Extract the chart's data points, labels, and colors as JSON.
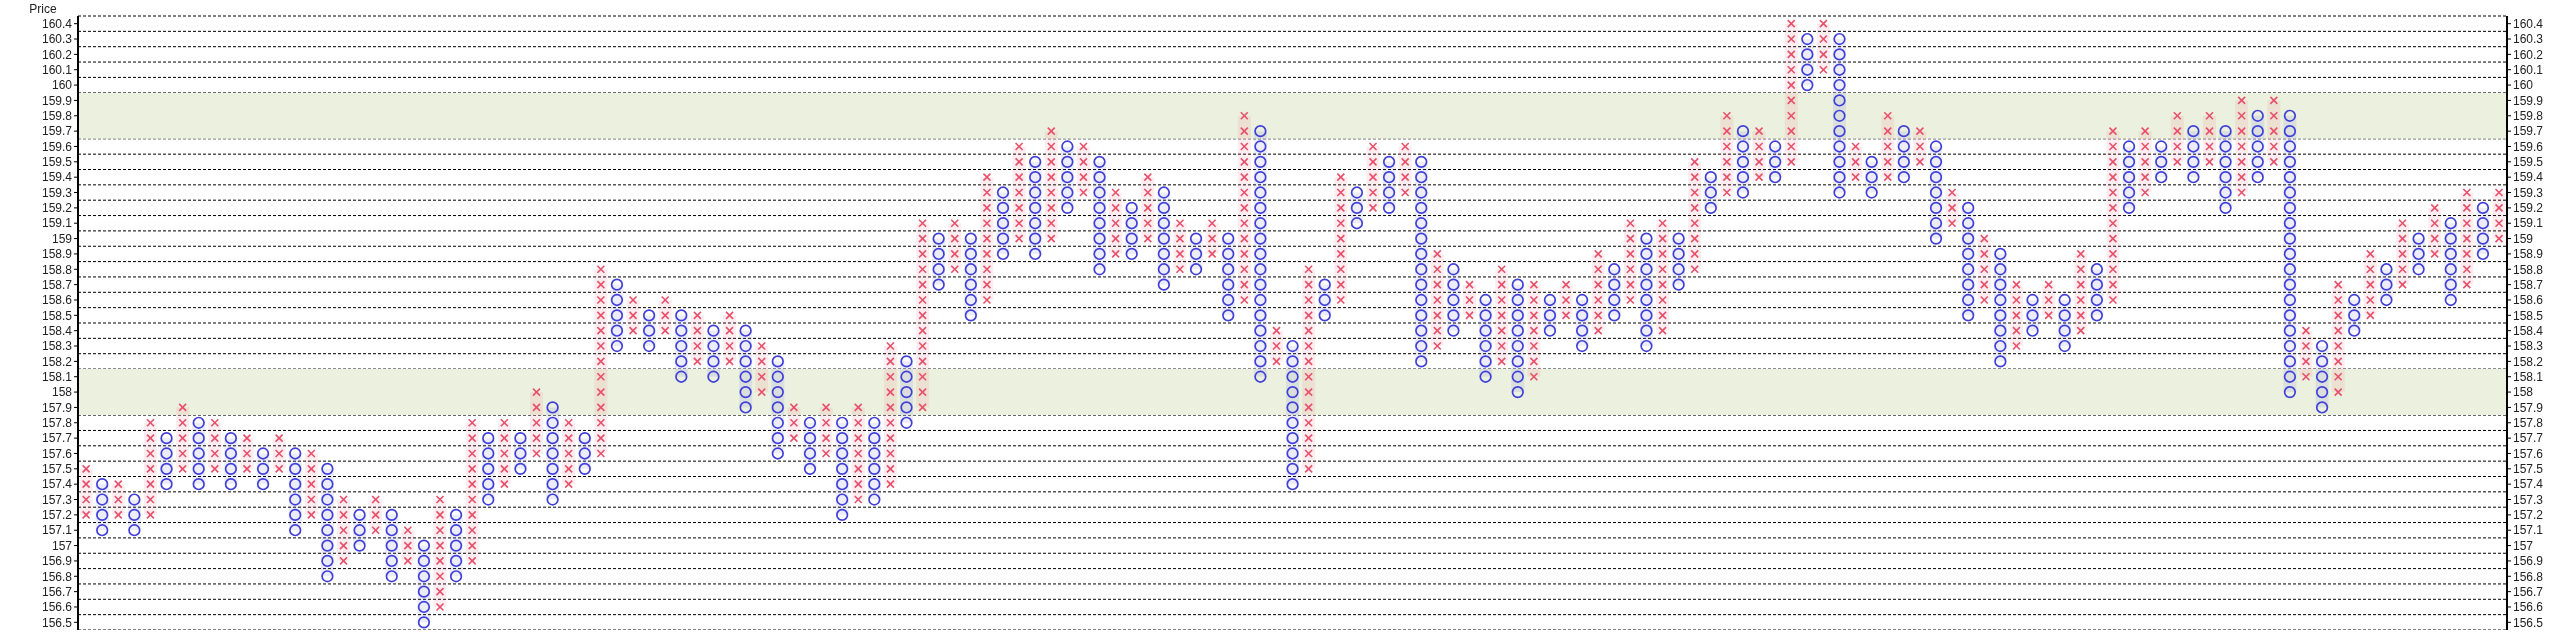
{
  "chart_data": {
    "type": "bar",
    "ylabel": "Price",
    "categories": [
      null,
      null,
      null,
      null,
      null,
      null,
      null,
      null,
      null,
      null,
      null,
      null,
      null,
      null,
      null,
      null,
      null,
      null,
      null,
      null,
      null,
      null,
      null,
      null,
      null,
      null,
      null,
      null,
      null,
      null,
      null,
      null,
      null,
      null,
      null,
      null,
      null,
      null,
      null,
      null,
      null,
      null,
      null,
      null,
      null,
      null,
      null,
      null,
      null,
      null,
      null,
      null,
      null,
      null,
      null,
      null,
      null,
      null,
      null,
      null,
      null,
      null,
      null,
      null,
      null,
      null,
      null,
      null,
      null,
      null,
      null,
      null,
      null,
      null,
      null,
      null,
      null,
      null,
      null,
      null,
      null,
      null,
      null,
      null,
      null,
      null,
      null,
      null,
      null,
      null,
      null,
      null,
      null,
      null,
      null,
      null,
      null,
      null,
      null,
      null,
      null,
      null,
      null,
      null,
      null,
      null,
      null,
      null,
      null,
      null,
      null,
      null,
      null,
      null,
      null,
      null,
      null,
      null,
      null,
      null,
      null,
      null,
      null,
      null,
      null,
      null,
      null,
      null,
      null,
      null,
      null,
      null,
      null,
      null,
      null,
      null,
      null,
      null,
      null,
      null,
      null,
      null,
      null,
      null,
      null,
      null,
      null,
      null,
      null,
      null,
      null
    ],
    "series": [
      {
        "color": "#e8506a",
        "marker": "cross",
        "base": [
          157.2,
          null,
          157.2,
          null,
          157.2,
          null,
          157.5,
          null,
          157.5,
          null,
          157.5,
          null,
          157.5,
          null,
          157.2,
          null,
          156.9,
          null,
          157.1,
          null,
          156.9,
          null,
          156.6,
          null,
          156.9,
          null,
          157.4,
          null,
          157.6,
          null,
          157.4,
          null,
          157.6,
          null,
          158.4,
          null,
          158.4,
          null,
          158.2,
          null,
          158.2,
          null,
          158.0,
          null,
          157.7,
          null,
          157.6,
          null,
          157.3,
          null,
          157.4,
          null,
          157.9,
          null,
          158.8,
          null,
          158.6,
          null,
          159.0,
          null,
          159.0,
          null,
          159.3,
          null,
          158.9,
          null,
          159.0,
          null,
          158.8,
          null,
          158.9,
          null,
          158.6,
          null,
          158.2,
          null,
          157.5,
          null,
          158.6,
          null,
          159.2,
          null,
          159.3,
          null,
          158.3,
          null,
          158.5,
          null,
          158.2,
          null,
          158.1,
          null,
          158.5,
          null,
          158.4,
          null,
          158.6,
          null,
          158.4,
          null,
          158.8,
          null,
          159.3,
          null,
          159.4,
          null,
          159.5,
          null,
          160.1,
          null,
          159.4,
          null,
          159.4,
          null,
          159.5,
          null,
          159.1,
          null,
          158.6,
          null,
          158.3,
          null,
          158.5,
          null,
          158.4,
          null,
          158.6,
          null,
          159.3,
          null,
          159.5,
          null,
          159.5,
          null,
          159.3,
          null,
          159.5,
          null,
          158.1,
          null,
          158.0,
          null,
          158.5,
          null,
          158.7,
          null,
          158.9,
          null,
          158.7,
          null,
          159.0
        ],
        "values": [
          0.3,
          null,
          0.2,
          null,
          0.6,
          null,
          0.4,
          null,
          0.3,
          null,
          0.2,
          null,
          0.2,
          null,
          0.4,
          null,
          0.4,
          null,
          0.2,
          null,
          0.2,
          null,
          0.7,
          null,
          0.9,
          null,
          0.4,
          null,
          0.4,
          null,
          0.4,
          null,
          1.2,
          null,
          0.2,
          null,
          0.2,
          null,
          0.3,
          null,
          0.3,
          null,
          0.3,
          null,
          0.2,
          null,
          0.3,
          null,
          0.6,
          null,
          0.9,
          null,
          1.2,
          null,
          0.3,
          null,
          0.8,
          null,
          0.6,
          null,
          0.7,
          null,
          0.3,
          null,
          0.4,
          null,
          0.4,
          null,
          0.3,
          null,
          0.2,
          null,
          1.2,
          null,
          0.2,
          null,
          1.3,
          null,
          0.8,
          null,
          0.4,
          null,
          0.3,
          null,
          0.6,
          null,
          0.2,
          null,
          0.6,
          null,
          0.6,
          null,
          0.2,
          null,
          0.5,
          null,
          0.5,
          null,
          0.7,
          null,
          0.7,
          null,
          0.5,
          null,
          0.3,
          null,
          0.9,
          null,
          0.3,
          null,
          0.2,
          null,
          0.4,
          null,
          0.2,
          null,
          0.2,
          null,
          0.4,
          null,
          0.4,
          null,
          0.2,
          null,
          0.5,
          null,
          1.1,
          null,
          0.4,
          null,
          0.3,
          null,
          0.3,
          null,
          0.6,
          null,
          0.4,
          null,
          0.3,
          null,
          0.7,
          null,
          0.4,
          null,
          0.4,
          null,
          0.3,
          null,
          0.6,
          null,
          0.3
        ]
      },
      {
        "color": "#4040d8",
        "marker": "circle",
        "base": [
          null,
          157.1,
          null,
          157.1,
          null,
          157.4,
          null,
          157.4,
          null,
          157.4,
          null,
          157.4,
          null,
          157.1,
          null,
          156.8,
          null,
          157.0,
          null,
          156.8,
          null,
          156.5,
          null,
          156.8,
          null,
          157.3,
          null,
          157.5,
          null,
          157.3,
          null,
          157.5,
          null,
          158.3,
          null,
          158.3,
          null,
          158.1,
          null,
          158.1,
          null,
          157.9,
          null,
          157.6,
          null,
          157.5,
          null,
          157.2,
          null,
          157.3,
          null,
          157.8,
          null,
          158.7,
          null,
          158.5,
          null,
          158.9,
          null,
          158.9,
          null,
          159.2,
          null,
          158.8,
          null,
          158.9,
          null,
          158.7,
          null,
          158.8,
          null,
          158.5,
          null,
          158.1,
          null,
          157.4,
          null,
          158.5,
          null,
          159.1,
          null,
          159.2,
          null,
          158.2,
          null,
          158.4,
          null,
          158.1,
          null,
          158.0,
          null,
          158.4,
          null,
          158.3,
          null,
          158.5,
          null,
          158.3,
          null,
          158.7,
          null,
          159.2,
          null,
          159.3,
          null,
          159.4,
          null,
          160.0,
          null,
          159.3,
          null,
          159.3,
          null,
          159.4,
          null,
          159.0,
          null,
          158.5,
          null,
          158.2,
          null,
          158.4,
          null,
          158.3,
          null,
          158.5,
          null,
          159.2,
          null,
          159.4,
          null,
          159.4,
          null,
          159.2,
          null,
          159.4,
          null,
          158.0,
          null,
          157.9,
          null,
          158.4,
          null,
          158.6,
          null,
          158.8,
          null,
          158.6,
          null,
          158.9,
          null
        ],
        "values": [
          null,
          0.3,
          null,
          0.2,
          null,
          0.3,
          null,
          0.4,
          null,
          0.3,
          null,
          0.2,
          null,
          0.5,
          null,
          0.7,
          null,
          0.2,
          null,
          0.4,
          null,
          0.5,
          null,
          0.4,
          null,
          0.4,
          null,
          0.2,
          null,
          0.6,
          null,
          0.2,
          null,
          0.4,
          null,
          0.2,
          null,
          0.4,
          null,
          0.3,
          null,
          0.5,
          null,
          0.6,
          null,
          0.3,
          null,
          0.6,
          null,
          0.5,
          null,
          0.4,
          null,
          0.3,
          null,
          0.5,
          null,
          0.4,
          null,
          0.6,
          null,
          0.4,
          null,
          0.7,
          null,
          0.3,
          null,
          0.6,
          null,
          0.2,
          null,
          0.5,
          null,
          1.6,
          null,
          0.9,
          null,
          0.2,
          null,
          0.2,
          null,
          0.3,
          null,
          1.3,
          null,
          0.4,
          null,
          0.5,
          null,
          0.7,
          null,
          0.2,
          null,
          0.3,
          null,
          0.3,
          null,
          0.7,
          null,
          0.3,
          null,
          0.2,
          null,
          0.4,
          null,
          0.2,
          null,
          0.3,
          null,
          1.0,
          null,
          0.2,
          null,
          0.3,
          null,
          0.6,
          null,
          0.7,
          null,
          0.7,
          null,
          0.2,
          null,
          0.3,
          null,
          0.3,
          null,
          0.4,
          null,
          0.2,
          null,
          0.3,
          null,
          0.5,
          null,
          0.4,
          null,
          1.8,
          null,
          0.4,
          null,
          0.2,
          null,
          0.2,
          null,
          0.2,
          null,
          0.5,
          null,
          0.3,
          null
        ]
      }
    ],
    "ylim": [
      156.45,
      160.45
    ],
    "yticks": [
      156.5,
      156.6,
      156.7,
      156.8,
      156.9,
      157,
      157.1,
      157.2,
      157.3,
      157.4,
      157.5,
      157.6,
      157.7,
      157.8,
      157.9,
      158,
      158.1,
      158.2,
      158.3,
      158.4,
      158.5,
      158.6,
      158.7,
      158.8,
      158.9,
      159,
      159.1,
      159.2,
      159.3,
      159.4,
      159.5,
      159.6,
      159.7,
      159.8,
      159.9,
      160,
      160.1,
      160.2,
      160.3,
      160.4
    ],
    "y2lim": [
      156.45,
      160.45
    ],
    "y2ticks": [
      156.5,
      156.6,
      156.7,
      156.8,
      156.9,
      157,
      157.1,
      157.2,
      157.3,
      157.4,
      157.5,
      157.6,
      157.7,
      157.8,
      157.9,
      158,
      158.1,
      158.2,
      158.3,
      158.4,
      158.5,
      158.6,
      158.7,
      158.8,
      158.9,
      159,
      159.1,
      159.2,
      159.3,
      159.4,
      159.5,
      159.6,
      159.7,
      159.8,
      159.9,
      160,
      160.1,
      160.2,
      160.3,
      160.4
    ],
    "bands": [
      {
        "axis": "y",
        "from": 159.65,
        "to": 159.95,
        "color": "#ebf1de"
      },
      {
        "axis": "y",
        "from": 157.85,
        "to": 158.15,
        "color": "#ebf1de"
      }
    ],
    "grid": true,
    "legend": false
  }
}
